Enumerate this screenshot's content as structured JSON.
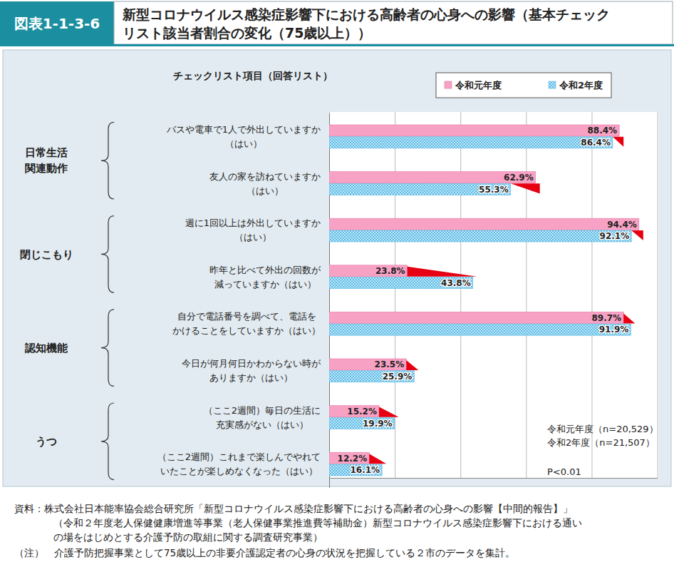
{
  "chart_data": {
    "type": "bar",
    "orientation": "horizontal",
    "figure_number": "図表1-1-3-6",
    "title": "新型コロナウイルス感染症影響下における高齢者の心身への影響（基本チェック\nリスト該当者割合の変化（75歳以上））",
    "y_label": "チェックリスト項目（回答リスト）",
    "categories": [
      "バスや電車で1人で外出していますか\n（はい）",
      "友人の家を訪ねていますか\n（はい）",
      "週に1回以上は外出していますか\n（はい）",
      "昨年と比べて外出の回数が\n減っていますか（はい）",
      "自分で電話番号を調べて、電話を\nかけることをしていますか（はい）",
      "今日が何月何日かわからない時が\nありますか（はい）",
      "（ここ2週間）毎日の生活に\n充実感がない（はい）",
      "（ここ2週間）これまで楽しんでやれて\nいたことが楽しめなくなった（はい）"
    ],
    "groups": [
      "日常生活\n関連動作",
      "日常生活\n関連動作",
      "閉じこもり",
      "閉じこもり",
      "認知機能",
      "認知機能",
      "うつ",
      "うつ"
    ],
    "series": [
      {
        "name": "令和元年度",
        "color": "#f7a1c4",
        "values": [
          88.4,
          62.9,
          94.4,
          23.8,
          89.7,
          23.5,
          15.2,
          12.2
        ],
        "value_labels": [
          "88.4%",
          "62.9%",
          "94.4%",
          "23.8%",
          "89.7%",
          "23.5%",
          "15.2%",
          "12.2%"
        ]
      },
      {
        "name": "令和2年度",
        "color": "#bfe8fa",
        "values": [
          86.4,
          55.3,
          92.1,
          43.8,
          91.9,
          25.9,
          19.9,
          16.1
        ],
        "value_labels": [
          "86.4%",
          "55.3%",
          "92.1%",
          "43.8%",
          "91.9%",
          "25.9%",
          "19.9%",
          "16.1%"
        ]
      }
    ],
    "xlim": [
      0,
      100
    ],
    "xticks": [
      0,
      20,
      40,
      60,
      80,
      100
    ],
    "grid": true,
    "tick_labels": false,
    "data_labels": true,
    "legend": "top-right",
    "annotations": [
      "令和元年度（n=20,529）",
      "令和2年度（n=21,507）",
      "P<0.01"
    ],
    "source": [
      "資料：株式会社日本能率協会総合研究所「新型コロナウイルス感染症影響下における高齢者の心身への影響【中間的報告】」",
      "（令和２年度老人保健健康増進等事業（老人保健事業推進費等補助金）新型コロナウイルス感染症影響下における通い",
      "の場をはじめとする介護予防の取組に関する調査研究事業）"
    ],
    "note": "（注）　介護予防把握事業として75歳以上の非要介護認定者の心身の状況を把握している２市のデータを集計。"
  }
}
